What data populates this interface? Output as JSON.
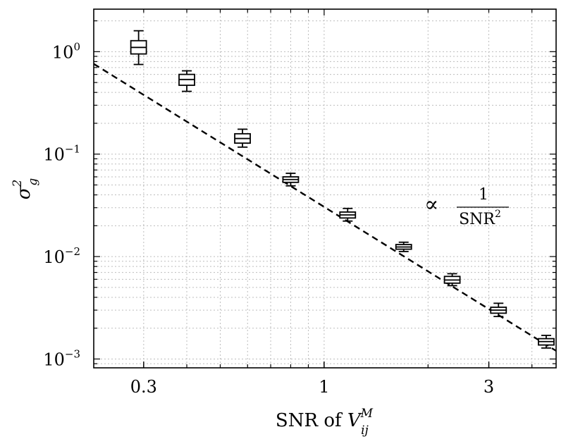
{
  "chart_data": {
    "type": "box",
    "title": "",
    "xlabel": {
      "text": "SNR of ",
      "var": "V",
      "sub": "ij",
      "sup": "M"
    },
    "ylabel": {
      "var": "σ",
      "sub": "g",
      "sup": "2"
    },
    "x_scale": "log",
    "y_scale": "log",
    "xlim": [
      0.215,
      4.7
    ],
    "ylim": [
      0.00082,
      2.6
    ],
    "grid": true,
    "x_ticks": [
      {
        "value": 0.3,
        "label": "0.3"
      },
      {
        "value": 1,
        "label": "1"
      },
      {
        "value": 3,
        "label": "3"
      }
    ],
    "y_ticks": [
      {
        "value": 0.001,
        "base": "10",
        "exp": "−3"
      },
      {
        "value": 0.01,
        "base": "10",
        "exp": "−2"
      },
      {
        "value": 0.1,
        "base": "10",
        "exp": "−1"
      },
      {
        "value": 1,
        "base": "10",
        "exp": "0"
      }
    ],
    "boxes": [
      {
        "x": 0.29,
        "whisker_low": 0.75,
        "q1": 0.95,
        "median": 1.1,
        "q3": 1.28,
        "whisker_high": 1.6
      },
      {
        "x": 0.4,
        "whisker_low": 0.41,
        "q1": 0.47,
        "median": 0.535,
        "q3": 0.6,
        "whisker_high": 0.65
      },
      {
        "x": 0.58,
        "whisker_low": 0.117,
        "q1": 0.128,
        "median": 0.142,
        "q3": 0.158,
        "whisker_high": 0.175
      },
      {
        "x": 0.8,
        "whisker_low": 0.049,
        "q1": 0.053,
        "median": 0.0565,
        "q3": 0.06,
        "whisker_high": 0.065
      },
      {
        "x": 1.17,
        "whisker_low": 0.0222,
        "q1": 0.0238,
        "median": 0.0255,
        "q3": 0.0272,
        "whisker_high": 0.0295
      },
      {
        "x": 1.7,
        "whisker_low": 0.0112,
        "q1": 0.0118,
        "median": 0.0124,
        "q3": 0.0131,
        "whisker_high": 0.0138
      },
      {
        "x": 2.35,
        "whisker_low": 0.0052,
        "q1": 0.0055,
        "median": 0.0059,
        "q3": 0.0064,
        "whisker_high": 0.0068
      },
      {
        "x": 3.2,
        "whisker_low": 0.0026,
        "q1": 0.0028,
        "median": 0.003,
        "q3": 0.0032,
        "whisker_high": 0.0035
      },
      {
        "x": 4.4,
        "whisker_low": 0.00128,
        "q1": 0.00137,
        "median": 0.00148,
        "q3": 0.00158,
        "whisker_high": 0.0017
      }
    ],
    "fit_line": {
      "style": "dashed",
      "x": [
        0.215,
        4.8
      ],
      "y": [
        0.76,
        0.00115
      ]
    },
    "annotation": {
      "prefix": "∝",
      "numerator": "1",
      "denominator": "SNR",
      "denominator_sup": "2"
    }
  }
}
